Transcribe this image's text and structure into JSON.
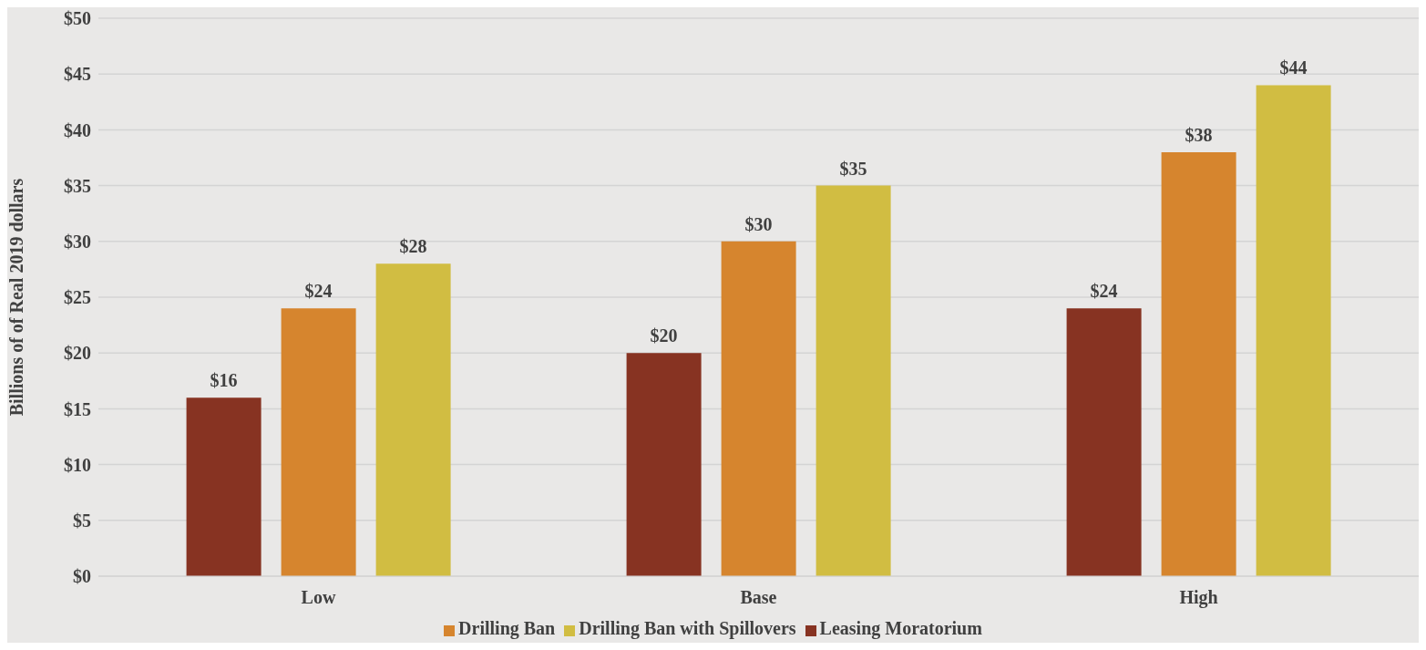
{
  "chart_data": {
    "type": "bar",
    "ylabel": "Billions of of Real  2019 dollars",
    "categories": [
      "Low",
      "Base",
      "High"
    ],
    "series": [
      {
        "name": "Leasing Moratorium",
        "color": "#873322",
        "values": [
          16,
          20,
          24
        ],
        "value_labels": [
          "$16",
          "$20",
          "$24"
        ]
      },
      {
        "name": "Drilling Ban",
        "color": "#d6852e",
        "values": [
          24,
          30,
          38
        ],
        "value_labels": [
          "$24",
          "$30",
          "$38"
        ]
      },
      {
        "name": "Drilling Ban with Spillovers",
        "color": "#d1bd42",
        "values": [
          28,
          35,
          44
        ],
        "value_labels": [
          "$28",
          "$35",
          "$44"
        ]
      }
    ],
    "ylim": [
      0,
      50
    ],
    "yticks": [
      {
        "value": 0,
        "label": "$0"
      },
      {
        "value": 5,
        "label": "$5"
      },
      {
        "value": 10,
        "label": "$10"
      },
      {
        "value": 15,
        "label": "$15"
      },
      {
        "value": 20,
        "label": "$20"
      },
      {
        "value": 25,
        "label": "$25"
      },
      {
        "value": 30,
        "label": "$30"
      },
      {
        "value": 35,
        "label": "$35"
      },
      {
        "value": 40,
        "label": "$40"
      },
      {
        "value": 45,
        "label": "$45"
      },
      {
        "value": 50,
        "label": "$50"
      }
    ],
    "grid": "y",
    "legend": "bottom"
  }
}
